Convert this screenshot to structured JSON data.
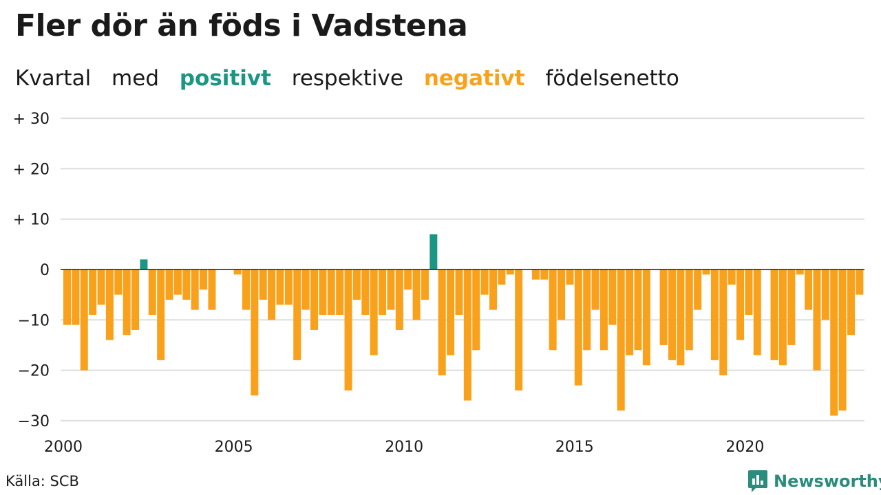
{
  "title": "Fler dör än föds i Vadstena",
  "subtitle": {
    "part1": "Kvartal",
    "part2": "med",
    "positive_word": "positivt",
    "part3": "respektive",
    "negative_word": "negativt",
    "part4": "födelsenetto"
  },
  "source": "Källa: SCB",
  "brand": {
    "name": "Newsworthy",
    "icon": "newsworthy-logo-icon"
  },
  "colors": {
    "positive": "#1a9682",
    "negative": "#f9a11b",
    "grid": "#dddddd",
    "text": "#1a1a1a",
    "brand": "#2a8c7c"
  },
  "chart_data": {
    "type": "bar",
    "x_start": 2000,
    "x_step_per_bar": 0.25,
    "x_ticks": [
      "2000",
      "2005",
      "2010",
      "2015",
      "2020"
    ],
    "y_ticks": [
      "+ 30",
      "+ 20",
      "+ 10",
      "0",
      "−10",
      "−20",
      "−30"
    ],
    "y_tick_values": [
      30,
      20,
      10,
      0,
      -10,
      -20,
      -30
    ],
    "ylim": [
      -30,
      30
    ],
    "grid": true,
    "values": [
      -11,
      -11,
      -20,
      -9,
      -7,
      -14,
      -5,
      -13,
      -12,
      2,
      -9,
      -18,
      -6,
      -5,
      -6,
      -8,
      -4,
      -8,
      0,
      0,
      -1,
      -8,
      -25,
      -6,
      -10,
      -7,
      -7,
      -18,
      -8,
      -12,
      -9,
      -9,
      -9,
      -24,
      -6,
      -9,
      -17,
      -9,
      -8,
      -12,
      -4,
      -10,
      -6,
      7,
      -21,
      -17,
      -9,
      -26,
      -16,
      -5,
      -8,
      -3,
      -1,
      -24,
      0,
      -2,
      -2,
      -16,
      -10,
      -3,
      -23,
      -16,
      -8,
      -16,
      -11,
      -28,
      -17,
      -16,
      -19,
      0,
      -15,
      -18,
      -19,
      -16,
      -8,
      -1,
      -18,
      -21,
      -3,
      -14,
      -9,
      -17,
      0,
      -18,
      -19,
      -15,
      -1,
      -8,
      -20,
      -10,
      -29,
      -28,
      -13,
      -5
    ]
  }
}
